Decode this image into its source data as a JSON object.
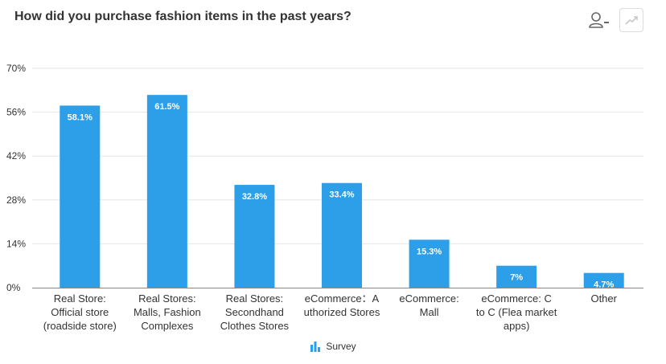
{
  "header": {
    "title": "How did you purchase fashion items in the past years?",
    "user_icon": "user-icon",
    "trend_icon": "trend-line-icon"
  },
  "chart_data": {
    "type": "bar",
    "title": "How did you purchase fashion items in the past years?",
    "categories": [
      [
        "Real Store:",
        "Official store",
        "(roadside store)"
      ],
      [
        "Real Stores:",
        "Malls, Fashion",
        "Complexes"
      ],
      [
        "Real Stores:",
        "Secondhand",
        "Clothes Stores"
      ],
      [
        "eCommerce：A",
        "uthorized Stores"
      ],
      [
        "eCommerce:",
        "Mall"
      ],
      [
        "eCommerce: C",
        "to C (Flea market",
        "apps)"
      ],
      [
        "Other"
      ]
    ],
    "series": [
      {
        "name": "Survey",
        "values": [
          58.1,
          61.5,
          32.8,
          33.4,
          15.3,
          7,
          4.7
        ],
        "labels": [
          "58.1%",
          "61.5%",
          "32.8%",
          "33.4%",
          "15.3%",
          "7%",
          "4.7%"
        ],
        "color": "#2c9fe8"
      }
    ],
    "ylim": [
      0,
      70
    ],
    "yticks": [
      0,
      14,
      28,
      42,
      56,
      70
    ],
    "ytick_labels": [
      "0%",
      "14%",
      "28%",
      "42%",
      "56%",
      "70%"
    ],
    "grid": true,
    "legend": "bottom",
    "colors": {
      "bar": "#2c9fe8",
      "grid": "#e6e6e6",
      "axis": "#888888"
    }
  }
}
